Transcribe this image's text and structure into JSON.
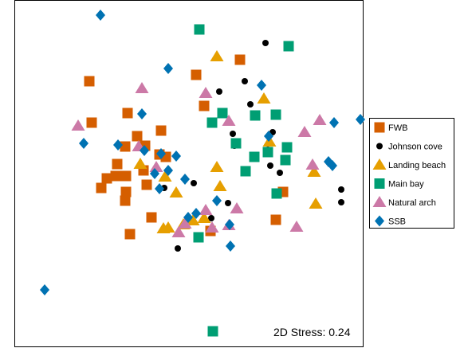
{
  "chart_data": {
    "type": "scatter",
    "title": "",
    "xlabel": "",
    "ylabel": "",
    "axes_visible": false,
    "grid": false,
    "xlim": [
      0,
      437
    ],
    "ylim": [
      0,
      436
    ],
    "legend_position": "right",
    "annotation": "2D Stress: 0.24",
    "series": [
      {
        "name": "FWB",
        "marker": "square",
        "color": "#d55e00",
        "points": [
          [
            94,
            102
          ],
          [
            283,
            75
          ],
          [
            228,
            94
          ],
          [
            238,
            133
          ],
          [
            142,
            142
          ],
          [
            97,
            154
          ],
          [
            184,
            164
          ],
          [
            154,
            171
          ],
          [
            139,
            184
          ],
          [
            164,
            183
          ],
          [
            182,
            194
          ],
          [
            190,
            197
          ],
          [
            129,
            206
          ],
          [
            116,
            224
          ],
          [
            127,
            221
          ],
          [
            140,
            221
          ],
          [
            162,
            214
          ],
          [
            109,
            236
          ],
          [
            166,
            232
          ],
          [
            140,
            241
          ],
          [
            139,
            252
          ],
          [
            337,
            241
          ],
          [
            172,
            273
          ],
          [
            328,
            276
          ],
          [
            145,
            294
          ],
          [
            246,
            290
          ]
        ]
      },
      {
        "name": "Johnson cove",
        "marker": "circle",
        "color": "#000000",
        "points": [
          [
            315,
            54
          ],
          [
            289,
            102
          ],
          [
            257,
            115
          ],
          [
            296,
            131
          ],
          [
            324,
            166
          ],
          [
            274,
            168
          ],
          [
            318,
            188
          ],
          [
            276,
            183
          ],
          [
            321,
            208
          ],
          [
            333,
            217
          ],
          [
            225,
            230
          ],
          [
            188,
            236
          ],
          [
            410,
            238
          ],
          [
            410,
            254
          ],
          [
            268,
            255
          ],
          [
            247,
            274
          ],
          [
            205,
            312
          ]
        ]
      },
      {
        "name": "Landing beach",
        "marker": "triangle",
        "color": "#e69f00",
        "points": [
          [
            254,
            71
          ],
          [
            313,
            124
          ],
          [
            320,
            178
          ],
          [
            158,
            206
          ],
          [
            254,
            210
          ],
          [
            189,
            222
          ],
          [
            376,
            216
          ],
          [
            258,
            234
          ],
          [
            203,
            242
          ],
          [
            378,
            256
          ],
          [
            238,
            274
          ],
          [
            224,
            277
          ],
          [
            212,
            282
          ],
          [
            193,
            286
          ],
          [
            187,
            287
          ]
        ]
      },
      {
        "name": "Main bay",
        "marker": "square",
        "color": "#009e73",
        "points": [
          [
            232,
            37
          ],
          [
            344,
            58
          ],
          [
            261,
            142
          ],
          [
            302,
            145
          ],
          [
            328,
            144
          ],
          [
            248,
            154
          ],
          [
            278,
            180
          ],
          [
            342,
            185
          ],
          [
            318,
            191
          ],
          [
            301,
            197
          ],
          [
            340,
            201
          ],
          [
            290,
            215
          ],
          [
            329,
            243
          ],
          [
            231,
            298
          ],
          [
            249,
            416
          ]
        ]
      },
      {
        "name": "Natural arch",
        "marker": "triangle",
        "color": "#cc79a7",
        "points": [
          [
            160,
            111
          ],
          [
            240,
            117
          ],
          [
            80,
            158
          ],
          [
            269,
            152
          ],
          [
            383,
            151
          ],
          [
            364,
            166
          ],
          [
            156,
            184
          ],
          [
            178,
            210
          ],
          [
            374,
            207
          ],
          [
            279,
            262
          ],
          [
            240,
            264
          ],
          [
            214,
            281
          ],
          [
            269,
            283
          ],
          [
            248,
            286
          ],
          [
            206,
            292
          ],
          [
            354,
            285
          ]
        ]
      },
      {
        "name": "SSB",
        "marker": "diamond",
        "color": "#0072b2",
        "points": [
          [
            108,
            19
          ],
          [
            193,
            86
          ],
          [
            310,
            107
          ],
          [
            160,
            143
          ],
          [
            434,
            150
          ],
          [
            401,
            154
          ],
          [
            87,
            180
          ],
          [
            130,
            182
          ],
          [
            319,
            171
          ],
          [
            163,
            189
          ],
          [
            203,
            196
          ],
          [
            184,
            193
          ],
          [
            193,
            214
          ],
          [
            394,
            203
          ],
          [
            399,
            208
          ],
          [
            176,
            218
          ],
          [
            182,
            237
          ],
          [
            214,
            225
          ],
          [
            254,
            252
          ],
          [
            228,
            268
          ],
          [
            218,
            273
          ],
          [
            270,
            282
          ],
          [
            271,
            309
          ],
          [
            38,
            364
          ]
        ]
      }
    ]
  }
}
